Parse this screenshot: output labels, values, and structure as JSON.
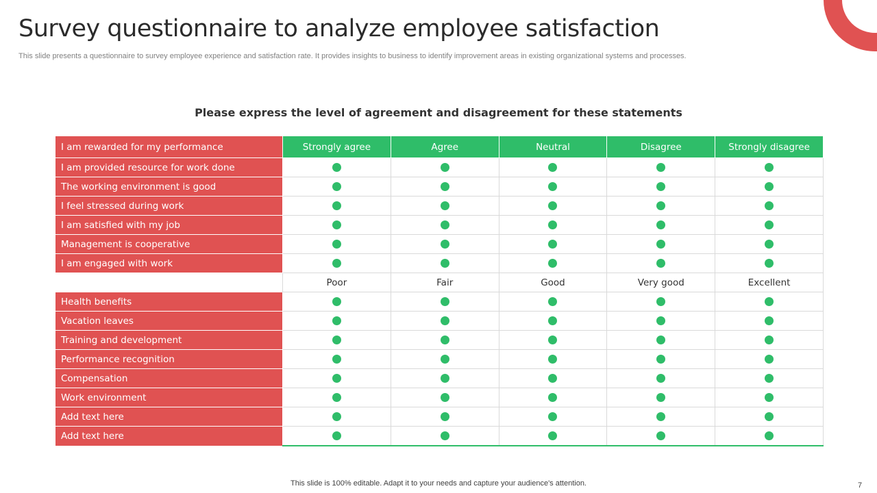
{
  "title": "Survey questionnaire to analyze employee satisfaction",
  "subtitle": "This slide presents a questionnaire to survey employee experience and satisfaction rate. It provides insights to business to identify improvement areas in existing organizational systems and processes.",
  "heading": "Please express the level of agreement and disagreement for these statements",
  "colors": {
    "label_red": "#e05252",
    "option_green": "#2fbd69"
  },
  "agreement": {
    "header_label": "I am rewarded for my performance",
    "options": [
      "Strongly agree",
      "Agree",
      "Neutral",
      "Disagree",
      "Strongly disagree"
    ],
    "statements": [
      "I am provided resource for work done",
      "The working environment is good",
      "I feel stressed during work",
      "I am satisfied with my job",
      "Management is cooperative",
      "I am engaged with work"
    ]
  },
  "rating": {
    "options": [
      "Poor",
      "Fair",
      "Good",
      "Very good",
      "Excellent"
    ],
    "items": [
      "Health benefits",
      "Vacation leaves",
      "Training and development",
      "Performance recognition",
      "Compensation",
      "Work environment",
      "Add text here",
      "Add text here"
    ]
  },
  "footer": "This slide is 100% editable. Adapt it to your needs and capture your audience's attention.",
  "page_number": "7"
}
